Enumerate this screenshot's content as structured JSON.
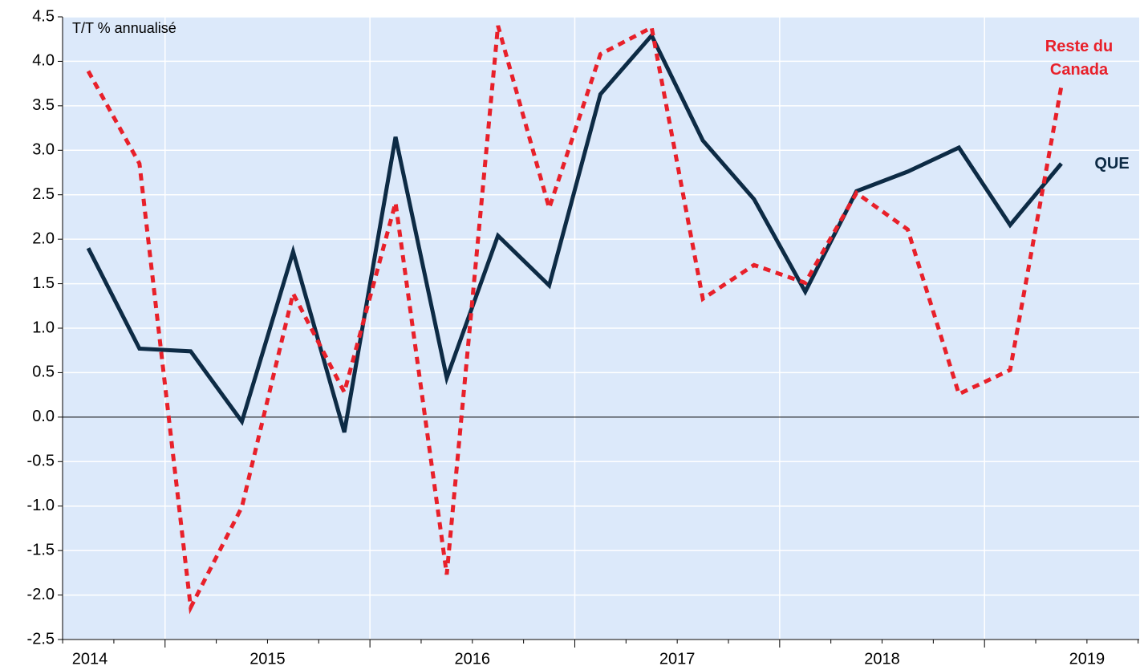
{
  "chart_data": {
    "type": "line",
    "y_label": "T/T % annualisé",
    "categories": [
      null,
      null,
      null,
      null,
      null,
      null,
      null,
      null,
      null,
      null,
      null,
      null,
      null,
      null,
      null,
      null,
      null,
      null,
      null,
      null
    ],
    "x_labels": [
      "2014",
      "2015",
      "2016",
      "2017",
      "2018",
      "2019"
    ],
    "series": [
      {
        "name": "QUE",
        "color": "#0d2b45",
        "dashed": false,
        "values": [
          1.9,
          0.77,
          0.74,
          -0.05,
          1.86,
          -0.17,
          3.15,
          0.44,
          2.04,
          1.48,
          3.63,
          4.29,
          3.11,
          2.45,
          1.41,
          2.54,
          2.76,
          3.03,
          2.16,
          2.85
        ]
      },
      {
        "name": "Reste du Canada",
        "color": "#e8202a",
        "dashed": true,
        "values": [
          3.89,
          2.85,
          -2.14,
          -1.01,
          1.39,
          0.28,
          2.41,
          -1.77,
          4.4,
          2.35,
          4.08,
          4.38,
          1.33,
          1.71,
          1.51,
          2.52,
          2.11,
          0.26,
          0.53,
          3.72
        ]
      }
    ],
    "ylim": [
      -2.5,
      4.5
    ],
    "yticks": [
      4.5,
      {
        "value": 4,
        "label": "4.0"
      },
      3.5,
      {
        "value": 3,
        "label": "3.0"
      },
      2.5,
      {
        "value": 2,
        "label": "2.0"
      },
      1.5,
      {
        "value": 1,
        "label": "1.0"
      },
      0.5,
      {
        "value": 0,
        "label": "0.0"
      },
      -0.5,
      {
        "value": -1,
        "label": "-1.0"
      },
      -1.5,
      {
        "value": -2,
        "label": "-2.0"
      },
      -2.5
    ],
    "grid": true
  }
}
